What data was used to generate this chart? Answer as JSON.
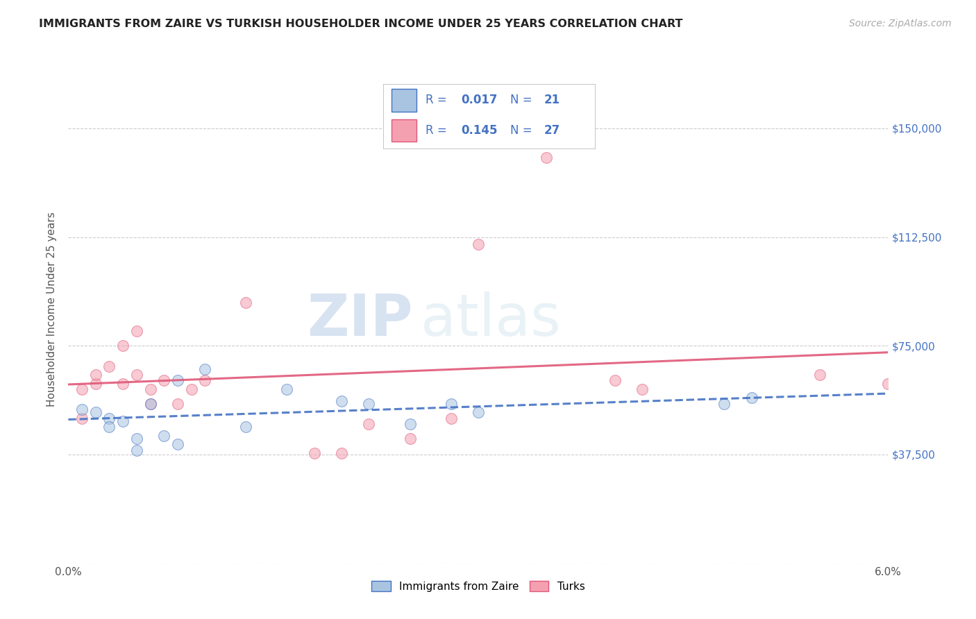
{
  "title": "IMMIGRANTS FROM ZAIRE VS TURKISH HOUSEHOLDER INCOME UNDER 25 YEARS CORRELATION CHART",
  "source": "Source: ZipAtlas.com",
  "ylabel": "Householder Income Under 25 years",
  "xlim": [
    0.0,
    0.06
  ],
  "ylim": [
    0,
    175000
  ],
  "yticks": [
    0,
    37500,
    75000,
    112500,
    150000
  ],
  "xticks": [
    0.0,
    0.01,
    0.02,
    0.03,
    0.04,
    0.05,
    0.06
  ],
  "background_color": "#ffffff",
  "grid_color": "#cccccc",
  "watermark_zip": "ZIP",
  "watermark_atlas": "atlas",
  "legend_labels": [
    "Immigrants from Zaire",
    "Turks"
  ],
  "zaire_color": "#a8c4e0",
  "turks_color": "#f4a0b0",
  "zaire_line_color": "#4472c4",
  "turks_line_color": "#e05878",
  "R_zaire": 0.017,
  "N_zaire": 21,
  "R_turks": 0.145,
  "N_turks": 27,
  "legend_text_color": "#4472c4",
  "zaire_x": [
    0.001,
    0.002,
    0.003,
    0.003,
    0.004,
    0.005,
    0.005,
    0.006,
    0.007,
    0.008,
    0.008,
    0.01,
    0.013,
    0.016,
    0.02,
    0.022,
    0.025,
    0.028,
    0.03,
    0.048,
    0.05
  ],
  "zaire_y": [
    53000,
    52000,
    50000,
    47000,
    49000,
    39000,
    43000,
    55000,
    44000,
    41000,
    63000,
    67000,
    47000,
    60000,
    56000,
    55000,
    48000,
    55000,
    52000,
    55000,
    57000
  ],
  "turks_x": [
    0.001,
    0.001,
    0.002,
    0.002,
    0.003,
    0.004,
    0.004,
    0.005,
    0.005,
    0.006,
    0.006,
    0.007,
    0.008,
    0.009,
    0.01,
    0.013,
    0.018,
    0.02,
    0.022,
    0.025,
    0.028,
    0.03,
    0.035,
    0.04,
    0.042,
    0.055,
    0.06
  ],
  "turks_y": [
    50000,
    60000,
    62000,
    65000,
    68000,
    62000,
    75000,
    65000,
    80000,
    55000,
    60000,
    63000,
    55000,
    60000,
    63000,
    90000,
    38000,
    38000,
    48000,
    43000,
    50000,
    110000,
    140000,
    63000,
    60000,
    65000,
    62000
  ],
  "marker_size": 130,
  "marker_alpha": 0.55,
  "line_alpha": 0.9,
  "line_width": 2.2,
  "zaire_line_style": "--",
  "turks_line_style": "-"
}
